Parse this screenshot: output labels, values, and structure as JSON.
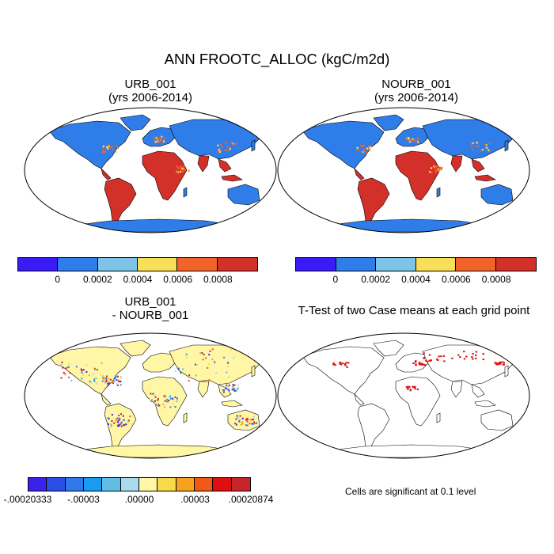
{
  "title": "ANN FROOTC_ALLOC (kgC/m2d)",
  "panels": [
    {
      "id": "urb",
      "title_line1": "URB_001",
      "title_line2": "(yrs 2006-2014)"
    },
    {
      "id": "nourb",
      "title_line1": "NOURB_001",
      "title_line2": "(yrs 2006-2014)"
    },
    {
      "id": "diff",
      "title_line1": "URB_001",
      "title_line2": "- NOURB_001"
    },
    {
      "id": "ttest",
      "title_line1": "T-Test of two Case means at each grid point",
      "title_line2": ""
    }
  ],
  "colorbar_abs": {
    "colors": [
      "#3b1bf5",
      "#2f7de9",
      "#7ec3e8",
      "#f7df5a",
      "#f1632a",
      "#d3302a"
    ],
    "labels": [
      "0",
      "0.0002",
      "0.0004",
      "0.0006",
      "0.0008"
    ]
  },
  "colorbar_diff": {
    "colors": [
      "#3a22e8",
      "#2a4de6",
      "#2f7ae8",
      "#1a9bf0",
      "#5fbde6",
      "#a9daee",
      "#fff6a6",
      "#f7d94a",
      "#f5a21f",
      "#ef5a16",
      "#e00f0f",
      "#c7252b"
    ],
    "labels": [
      "-.00020333",
      "-.00003",
      ".00000",
      ".00003",
      ".00020874"
    ]
  },
  "significance_note": "Cells are significant at 0.1 level",
  "map_colors": {
    "ocean": "#ffffff",
    "outline": "#000000",
    "land_low": "#2f7de9",
    "land_mid": "#f7df5a",
    "land_high": "#d3302a",
    "land_orange": "#f1632a",
    "diff_land": "#fff6a6",
    "signif": "#e00f0f"
  }
}
